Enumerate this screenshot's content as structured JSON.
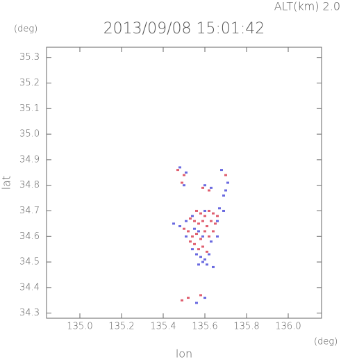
{
  "chart_data": {
    "type": "scatter",
    "title": "2013/09/08 15:01:42",
    "subtitle": "ALT(km) 2.0",
    "y_unit": "(deg)",
    "x_unit": "(deg)",
    "x_label": "lon",
    "y_label": "lat",
    "xlim": [
      134.84,
      136.16
    ],
    "ylim": [
      34.28,
      35.34
    ],
    "xticks": [
      {
        "value": 135,
        "label": "135.0"
      },
      135.2,
      135.4,
      135.6,
      135.8,
      {
        "value": 136,
        "label": "136.0"
      }
    ],
    "yticks": [
      34.3,
      34.4,
      34.5,
      34.6,
      34.7,
      34.8,
      34.9,
      {
        "value": 35,
        "label": "35.0"
      },
      35.1,
      35.2,
      35.3
    ],
    "series": [
      {
        "color": "#e06070",
        "x": [
          135.47,
          135.5,
          135.49,
          135.59,
          135.62,
          135.7,
          135.56,
          135.58,
          135.6,
          135.62,
          135.64,
          135.66,
          135.53,
          135.55,
          135.57,
          135.59,
          135.61,
          135.63,
          135.65,
          135.5,
          135.52,
          135.54,
          135.56,
          135.58,
          135.6,
          135.62,
          135.64,
          135.55,
          135.57,
          135.59,
          135.61,
          135.53,
          135.49,
          135.52,
          135.58
        ],
        "values": [
          34.86,
          34.84,
          34.81,
          34.79,
          34.78,
          34.84,
          34.7,
          34.69,
          34.68,
          34.7,
          34.69,
          34.68,
          34.67,
          34.66,
          34.65,
          34.66,
          34.64,
          34.66,
          34.65,
          34.63,
          34.62,
          34.6,
          34.61,
          34.59,
          34.62,
          34.6,
          34.62,
          34.57,
          34.55,
          34.56,
          34.54,
          34.58,
          34.35,
          34.36,
          34.37
        ]
      },
      {
        "color": "#6a6ae0",
        "x": [
          135.48,
          135.51,
          135.5,
          135.6,
          135.63,
          135.68,
          135.71,
          135.69,
          135.7,
          135.45,
          135.48,
          135.51,
          135.54,
          135.6,
          135.67,
          135.69,
          135.66,
          135.51,
          135.55,
          135.57,
          135.59,
          135.63,
          135.66,
          135.54,
          135.56,
          135.58,
          135.6,
          135.62,
          135.57,
          135.59,
          135.61,
          135.64,
          135.56,
          135.6
        ],
        "values": [
          34.87,
          34.85,
          34.8,
          34.8,
          34.79,
          34.86,
          34.81,
          34.76,
          34.78,
          34.65,
          34.64,
          34.66,
          34.68,
          34.7,
          34.71,
          34.7,
          34.66,
          34.6,
          34.63,
          34.62,
          34.6,
          34.58,
          34.6,
          34.55,
          34.53,
          34.52,
          34.51,
          34.53,
          34.49,
          34.5,
          34.49,
          34.48,
          34.34,
          34.36
        ]
      }
    ]
  }
}
